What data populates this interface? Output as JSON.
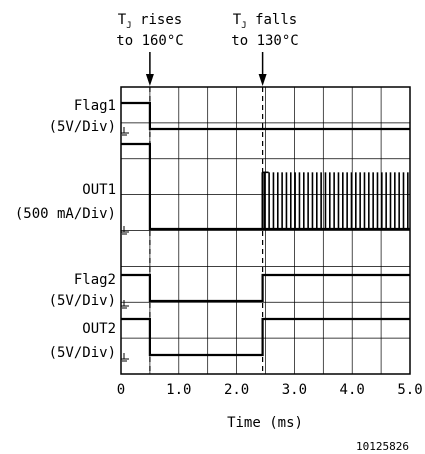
{
  "chart_data": {
    "type": "line",
    "xlabel": "Time (ms)",
    "xlim": [
      0,
      5.0
    ],
    "x_ticks": [
      "0",
      "1.0",
      "2.0",
      "3.0",
      "4.0",
      "5.0"
    ],
    "grid": true,
    "figure_id": "10125826",
    "annotations": [
      {
        "x": 0.5,
        "line1": "T",
        "sub": "J",
        "line2_tail": " rises",
        "line3": "to 160°C"
      },
      {
        "x": 2.45,
        "line1": "T",
        "sub": "J",
        "line2_tail": " falls",
        "line3": "to 130°C"
      }
    ],
    "series": [
      {
        "name": "Flag1",
        "scale": "(5V/Div)",
        "unit": "V",
        "high": 5,
        "low": 0,
        "points": [
          [
            0,
            5
          ],
          [
            0.5,
            5
          ],
          [
            0.5,
            0
          ],
          [
            5.0,
            0
          ]
        ]
      },
      {
        "name": "OUT1",
        "scale": "(500 mA/Div)",
        "unit": "mA",
        "points": [
          [
            0,
            1500
          ],
          [
            0.5,
            1500
          ],
          [
            0.5,
            0
          ],
          [
            2.45,
            0
          ],
          [
            2.45,
            1000
          ]
        ],
        "pulse_train": {
          "start": 2.45,
          "end": 5.0,
          "count": 34,
          "high": 1000,
          "low": 0
        }
      },
      {
        "name": "Flag2",
        "scale": "(5V/Div)",
        "unit": "V",
        "high": 5,
        "low": 0,
        "points": [
          [
            0,
            5
          ],
          [
            0.5,
            5
          ],
          [
            0.5,
            0
          ],
          [
            2.45,
            0
          ],
          [
            2.45,
            5
          ],
          [
            5.0,
            5
          ]
        ]
      },
      {
        "name": "OUT2",
        "scale": "(5V/Div)",
        "unit": "V",
        "high": 5,
        "low": 0,
        "points": [
          [
            0,
            5
          ],
          [
            0.5,
            5
          ],
          [
            0.5,
            0
          ],
          [
            2.45,
            0
          ],
          [
            2.45,
            5
          ],
          [
            5.0,
            5
          ]
        ]
      }
    ]
  }
}
